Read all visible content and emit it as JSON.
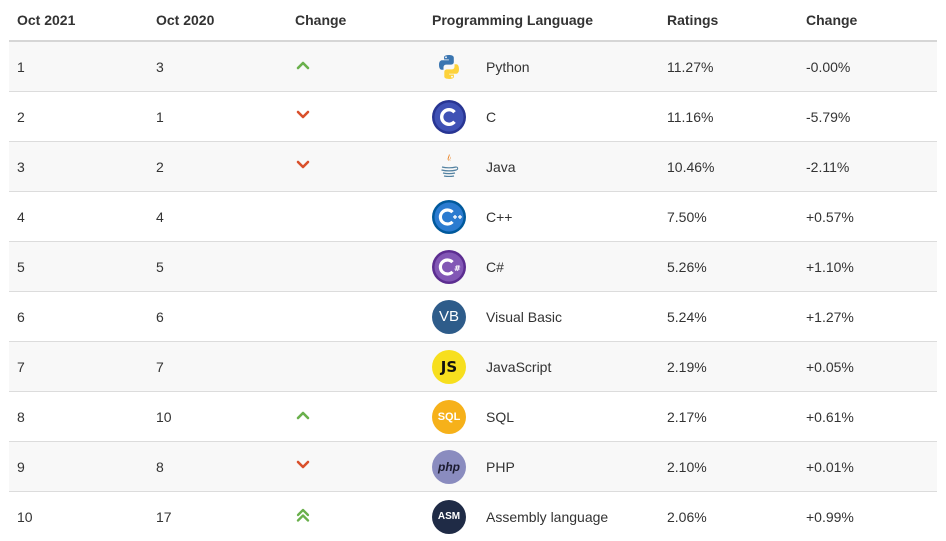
{
  "headers": {
    "col1": "Oct 2021",
    "col2": "Oct 2020",
    "col3": "Change",
    "col4": "Programming Language",
    "col5": "Ratings",
    "col6": "Change"
  },
  "rows": [
    {
      "rank_now": "1",
      "rank_prev": "3",
      "trend": "up",
      "language": "Python",
      "rating": "11.27%",
      "change": "-0.00%",
      "icon": "python-icon"
    },
    {
      "rank_now": "2",
      "rank_prev": "1",
      "trend": "down",
      "language": "C",
      "rating": "11.16%",
      "change": "-5.79%",
      "icon": "c-icon"
    },
    {
      "rank_now": "3",
      "rank_prev": "2",
      "trend": "down",
      "language": "Java",
      "rating": "10.46%",
      "change": "-2.11%",
      "icon": "java-icon"
    },
    {
      "rank_now": "4",
      "rank_prev": "4",
      "trend": "none",
      "language": "C++",
      "rating": "7.50%",
      "change": "+0.57%",
      "icon": "cpp-icon"
    },
    {
      "rank_now": "5",
      "rank_prev": "5",
      "trend": "none",
      "language": "C#",
      "rating": "5.26%",
      "change": "+1.10%",
      "icon": "csharp-icon"
    },
    {
      "rank_now": "6",
      "rank_prev": "6",
      "trend": "none",
      "language": "Visual Basic",
      "rating": "5.24%",
      "change": "+1.27%",
      "icon": "vb-icon",
      "logo_text": "VB"
    },
    {
      "rank_now": "7",
      "rank_prev": "7",
      "trend": "none",
      "language": "JavaScript",
      "rating": "2.19%",
      "change": "+0.05%",
      "icon": "javascript-icon",
      "logo_text": "JS"
    },
    {
      "rank_now": "8",
      "rank_prev": "10",
      "trend": "up",
      "language": "SQL",
      "rating": "2.17%",
      "change": "+0.61%",
      "icon": "sql-icon",
      "logo_text": "SQL"
    },
    {
      "rank_now": "9",
      "rank_prev": "8",
      "trend": "down",
      "language": "PHP",
      "rating": "2.10%",
      "change": "+0.01%",
      "icon": "php-icon",
      "logo_text": "php"
    },
    {
      "rank_now": "10",
      "rank_prev": "17",
      "trend": "double-up",
      "language": "Assembly language",
      "rating": "2.06%",
      "change": "+0.99%",
      "icon": "assembly-icon",
      "logo_text": "ASM"
    }
  ],
  "colors": {
    "up": "#6ab04c",
    "down": "#d9502b",
    "header_border": "#d6d6d6",
    "row_border": "#dcdcdc",
    "stripe": "#f8f8f8"
  }
}
